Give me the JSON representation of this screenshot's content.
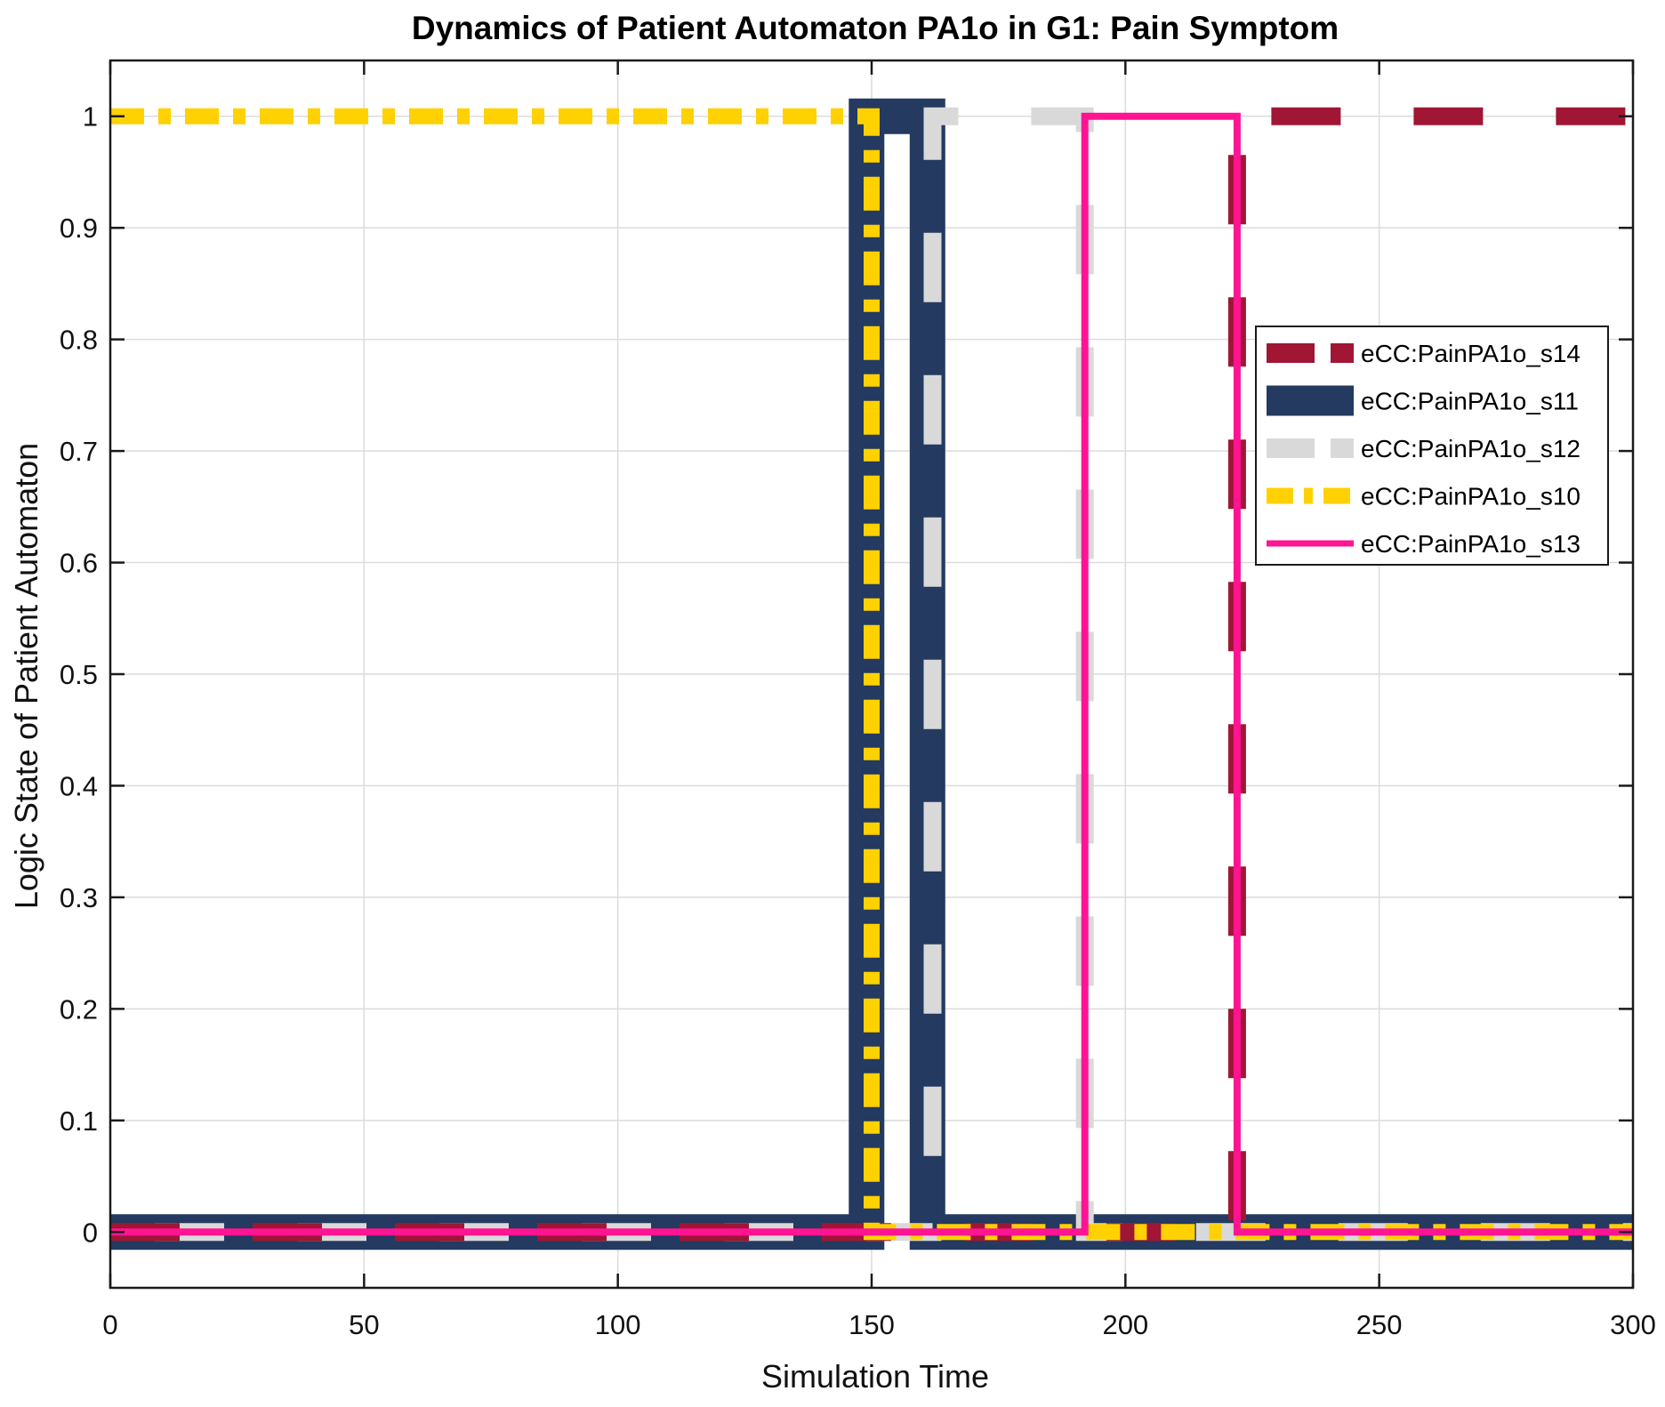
{
  "chart_data": {
    "type": "line",
    "title": "Dynamics of Patient Automaton PA1o in G1: Pain Symptom",
    "xlabel": "Simulation Time",
    "ylabel": "Logic State of Patient Automaton",
    "xlim": [
      0,
      300
    ],
    "ylim": [
      -0.05,
      1.05
    ],
    "xticks": [
      0,
      50,
      100,
      150,
      200,
      250,
      300
    ],
    "xtick_labels": [
      "0",
      "50",
      "100",
      "150",
      "200",
      "250",
      "300"
    ],
    "yticks": [
      0,
      0.1,
      0.2,
      0.3,
      0.4,
      0.5,
      0.6,
      0.7,
      0.8,
      0.9,
      1
    ],
    "ytick_labels": [
      "0",
      "0.1",
      "0.2",
      "0.3",
      "0.4",
      "0.5",
      "0.6",
      "0.7",
      "0.8",
      "0.9",
      "1"
    ],
    "grid": true,
    "legend_position": "right",
    "series": [
      {
        "name": "eCC:PainPA1o_s14",
        "color": "#A01634",
        "style": "dashed-thick",
        "x": [
          0,
          222,
          222,
          300
        ],
        "y": [
          0,
          0,
          1,
          1
        ]
      },
      {
        "name": "eCC:PainPA1o_s11",
        "color": "#243A60",
        "style": "solid-thick",
        "x": [
          0,
          149,
          149,
          161,
          161,
          300
        ],
        "y": [
          0,
          0,
          1,
          1,
          0,
          0
        ]
      },
      {
        "name": "eCC:PainPA1o_s12",
        "color": "#D9D9D9",
        "style": "dashed-thick",
        "x": [
          0,
          162,
          162,
          192,
          192,
          300
        ],
        "y": [
          0,
          0,
          1,
          1,
          0,
          0
        ]
      },
      {
        "name": "eCC:PainPA1o_s10",
        "color": "#FFD100",
        "style": "dashdot",
        "x": [
          0,
          150,
          150,
          300
        ],
        "y": [
          1,
          1,
          0,
          0
        ]
      },
      {
        "name": "eCC:PainPA1o_s13",
        "color": "#FF1493",
        "style": "solid",
        "x": [
          0,
          192,
          192,
          222,
          222,
          300
        ],
        "y": [
          0,
          0,
          1,
          1,
          0,
          0
        ]
      }
    ]
  }
}
